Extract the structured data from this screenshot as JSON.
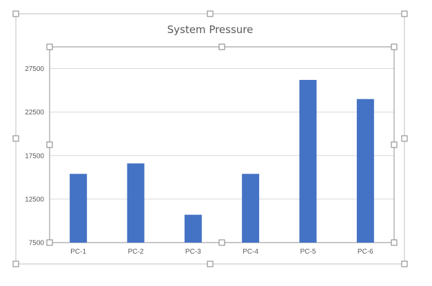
{
  "chart_data": {
    "type": "bar",
    "title": "System Pressure",
    "xlabel": "",
    "ylabel": "",
    "categories": [
      "PC-1",
      "PC-2",
      "PC-3",
      "PC-4",
      "PC-5",
      "PC-6"
    ],
    "values": [
      15400,
      16600,
      10700,
      15400,
      26200,
      24000
    ],
    "ylim": [
      7500,
      30000
    ],
    "yticks": [
      "7500",
      "12500",
      "17500",
      "22500",
      "27500"
    ],
    "ytick_values": [
      7500,
      12500,
      17500,
      22500,
      27500
    ],
    "grid": true,
    "legend": "none",
    "bar_color": "#4472c4",
    "grid_color": "#d9d9d9"
  }
}
